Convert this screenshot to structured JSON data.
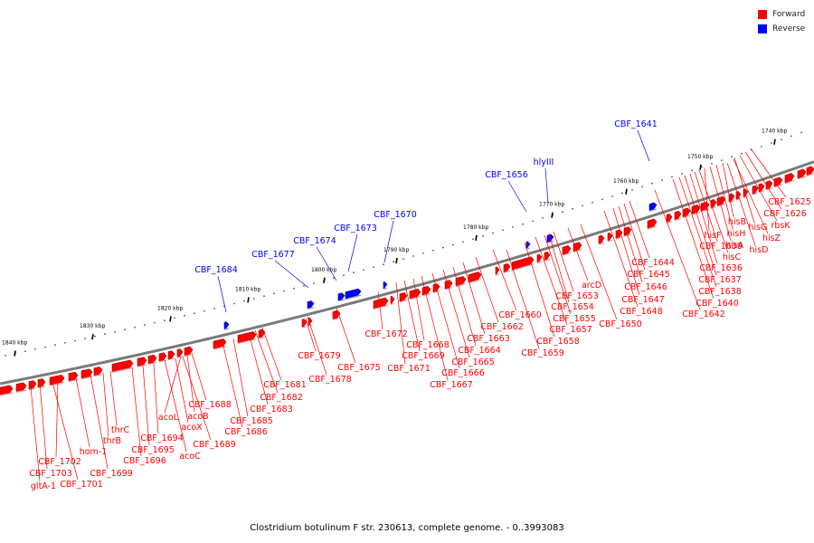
{
  "legend": {
    "forward": {
      "label": "Forward",
      "color": "#ff0000"
    },
    "reverse": {
      "label": "Reverse",
      "color": "#0000ff"
    }
  },
  "caption": "Clostridium botulinum F str. 230613, complete genome. - 0..3993083",
  "chart_data": {
    "type": "genome-map",
    "scale_labels": [
      {
        "kbp": 1840,
        "label": "1840 kbp"
      },
      {
        "kbp": 1830,
        "label": "1830 kbp"
      },
      {
        "kbp": 1820,
        "label": "1820 kbp"
      },
      {
        "kbp": 1810,
        "label": "1810 kbp"
      },
      {
        "kbp": 1800,
        "label": "1800 kbp"
      },
      {
        "kbp": 1790,
        "label": "1790 kbp"
      },
      {
        "kbp": 1780,
        "label": "1780 kbp"
      },
      {
        "kbp": 1770,
        "label": "1770 kbp"
      },
      {
        "kbp": 1760,
        "label": "1760 kbp"
      },
      {
        "kbp": 1750,
        "label": "1750 kbp"
      },
      {
        "kbp": 1740,
        "label": "1740 kbp"
      }
    ],
    "reverse_genes": [
      "CBF_1641",
      "hlyIII",
      "CBF_1656",
      "CBF_1670",
      "CBF_1673",
      "CBF_1674",
      "CBF_1677",
      "CBF_1684"
    ],
    "forward_genes": [
      "CBF_1625",
      "CBF_1626",
      "rbsK",
      "hisZ",
      "hisD",
      "hisG",
      "hisB",
      "hisH",
      "hisA",
      "hisF",
      "hisC",
      "CBF_1639",
      "CBF_1636",
      "CBF_1637",
      "CBF_1638",
      "CBF_1640",
      "CBF_1642",
      "CBF_1644",
      "CBF_1645",
      "CBF_1646",
      "CBF_1647",
      "CBF_1648",
      "CBF_1650",
      "arcD",
      "CBF_1653",
      "CBF_1654",
      "CBF_1655",
      "CBF_1657",
      "CBF_1658",
      "CBF_1659",
      "CBF_1660",
      "CBF_1662",
      "CBF_1663",
      "CBF_1664",
      "CBF_1665",
      "CBF_1666",
      "CBF_1667",
      "CBF_1668",
      "CBF_1669",
      "CBF_1671",
      "CBF_1672",
      "CBF_1675",
      "CBF_1678",
      "CBF_1679",
      "CBF_1681",
      "CBF_1682",
      "CBF_1683",
      "CBF_1685",
      "CBF_1686",
      "CBF_1688",
      "acoB",
      "acoL",
      "acoX",
      "CBF_1689",
      "acoC",
      "CBF_1694",
      "CBF_1695",
      "CBF_1696",
      "thrC",
      "thrB",
      "CBF_1699",
      "hom-1",
      "CBF_1702",
      "CBF_1703",
      "CBF_1701",
      "gltA-1"
    ]
  }
}
